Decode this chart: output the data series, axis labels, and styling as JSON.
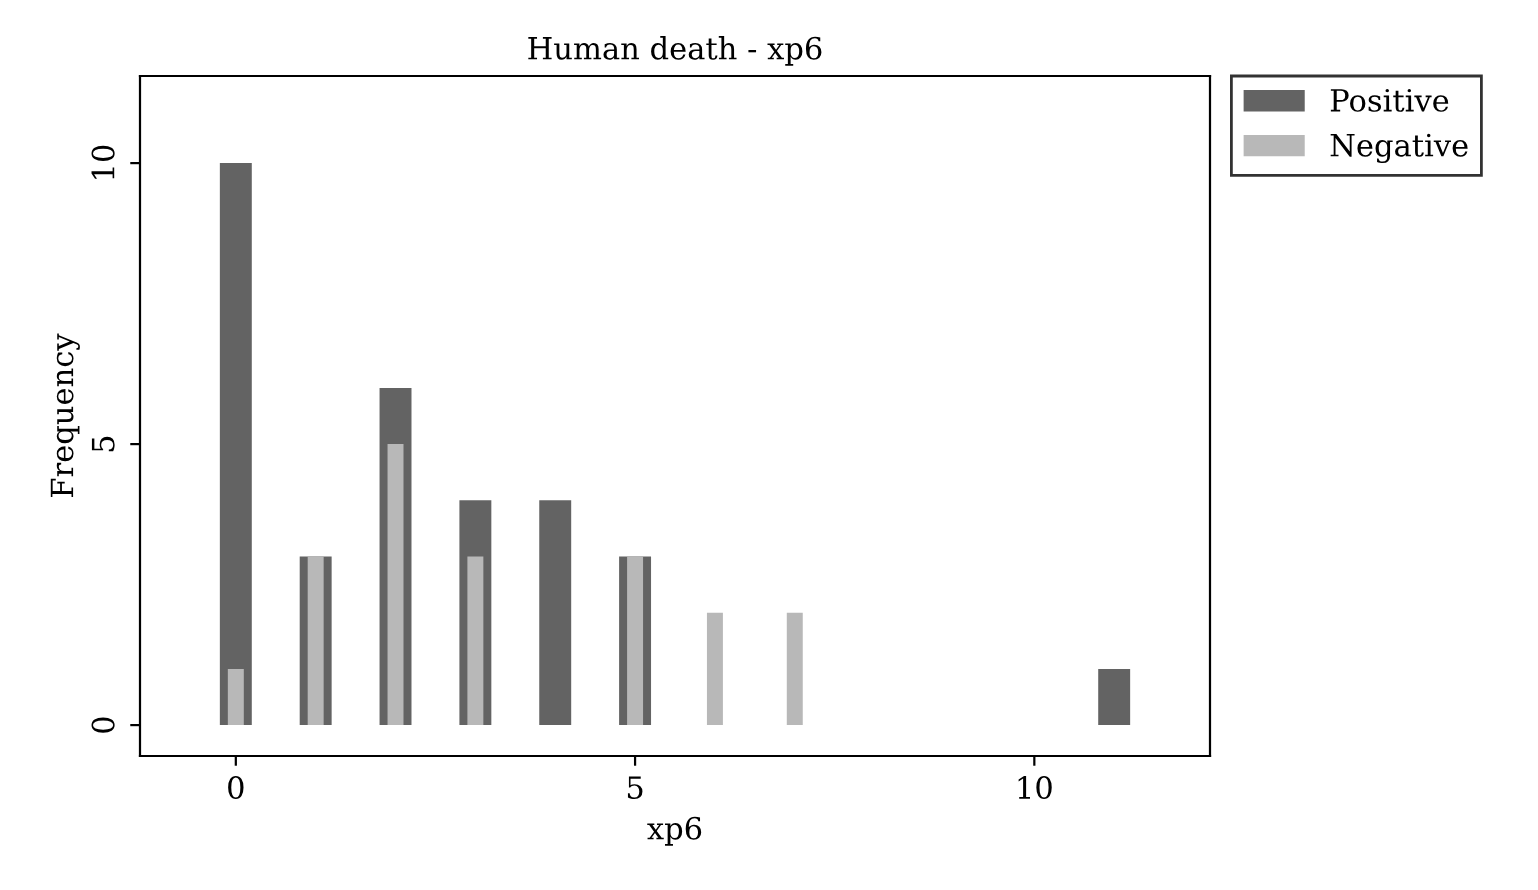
{
  "chart_data": {
    "type": "bar",
    "title": "Human death - xp6",
    "xlabel": "xp6",
    "ylabel": "Frequency",
    "series": [
      {
        "name": "Positive",
        "color": "#636363",
        "x": [
          0,
          1,
          2,
          3,
          4,
          5,
          11
        ],
        "values": [
          10,
          3,
          6,
          4,
          4,
          3,
          1
        ]
      },
      {
        "name": "Negative",
        "color": "#b8b8b8",
        "x": [
          0,
          1,
          2,
          3,
          5,
          6,
          7
        ],
        "values": [
          1,
          3,
          5,
          3,
          3,
          2,
          2
        ]
      }
    ],
    "xlim": [
      -1.2,
      12.2
    ],
    "xticks": [
      0,
      5,
      10
    ],
    "ylim": [
      -0.55,
      11.55
    ],
    "yticks": [
      0,
      5,
      10
    ],
    "grid": false,
    "legend": "top right"
  }
}
